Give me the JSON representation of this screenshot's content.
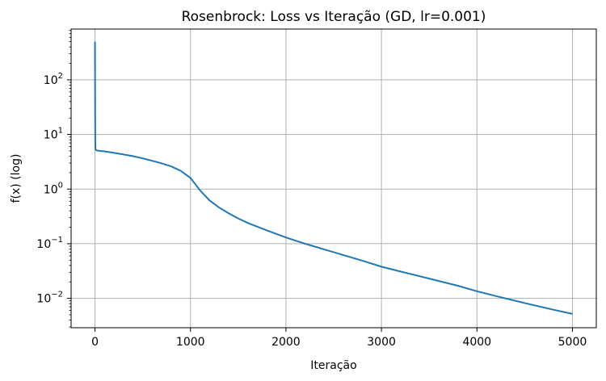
{
  "chart_data": {
    "type": "line",
    "title": "Rosenbrock: Loss vs Iteração (GD, lr=0.001)",
    "xlabel": "Iteração",
    "ylabel": "f(x) (log)",
    "xlim": [
      -250,
      5250
    ],
    "ylim": [
      0.0029,
      850
    ],
    "yscale": "log",
    "grid": true,
    "x_ticks": [
      0,
      1000,
      2000,
      3000,
      4000,
      5000
    ],
    "x_tick_labels": [
      "0",
      "1000",
      "2000",
      "3000",
      "4000",
      "5000"
    ],
    "y_ticks": [
      0.01,
      0.1,
      1,
      10,
      100
    ],
    "y_tick_labels": [
      {
        "base": "10",
        "exp": "−2"
      },
      {
        "base": "10",
        "exp": "−1"
      },
      {
        "base": "10",
        "exp": "0"
      },
      {
        "base": "10",
        "exp": "1"
      },
      {
        "base": "10",
        "exp": "2"
      }
    ],
    "line_color": "#1f77b4",
    "series": [
      {
        "x": [
          0,
          1,
          2,
          3,
          5,
          10,
          20,
          50,
          100,
          200,
          300,
          400,
          500,
          600,
          700,
          800,
          900,
          1000,
          1100,
          1200,
          1300,
          1400,
          1500,
          1600,
          1800,
          2000,
          2200,
          2500,
          2800,
          3000,
          3200,
          3500,
          3800,
          4000,
          4200,
          4500,
          4800,
          5000
        ],
        "y": [
          500,
          100,
          20,
          8,
          5.5,
          5.2,
          5.1,
          5.0,
          4.9,
          4.6,
          4.3,
          4.0,
          3.65,
          3.3,
          2.95,
          2.6,
          2.15,
          1.6,
          0.95,
          0.62,
          0.46,
          0.36,
          0.29,
          0.24,
          0.175,
          0.13,
          0.1,
          0.07,
          0.049,
          0.038,
          0.031,
          0.023,
          0.017,
          0.0135,
          0.011,
          0.0082,
          0.0062,
          0.0052
        ]
      }
    ]
  }
}
